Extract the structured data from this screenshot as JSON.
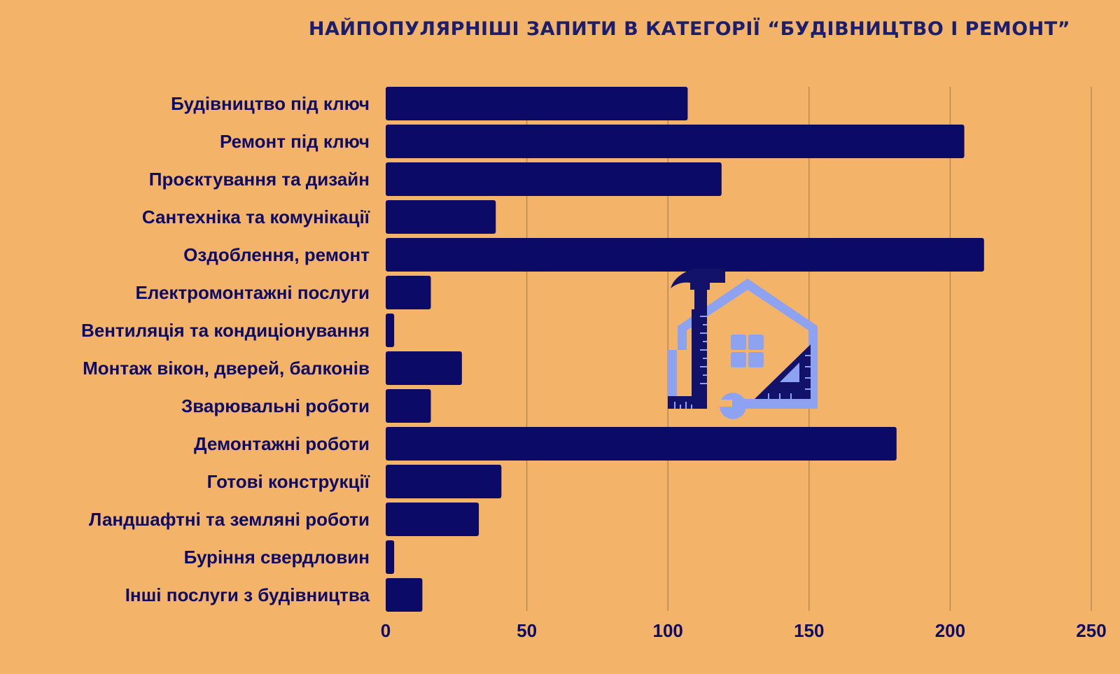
{
  "colors": {
    "background": "#F3B46A",
    "bar": "#0B0A66",
    "text": "#0E0B66",
    "grid": "#B98A55",
    "icon_light": "#8DA2F0",
    "icon_dark": "#12126B"
  },
  "icon": "house-tools-icon",
  "chart_data": {
    "type": "bar",
    "orientation": "horizontal",
    "title": "НАЙПОПУЛЯРНІШІ ЗАПИТИ В КАТЕГОРІЇ “БУДІВНИЦТВО І РЕМОНТ”",
    "xlabel": "",
    "ylabel": "",
    "xlim": [
      0,
      250
    ],
    "xticks": [
      0,
      50,
      100,
      150,
      200,
      250
    ],
    "grid": "vertical",
    "categories": [
      "Будівництво під ключ",
      "Ремонт під ключ",
      "Проєктування та дизайн",
      "Сантехніка та комунікації",
      "Оздоблення, ремонт",
      "Електромонтажні послуги",
      "Вентиляція та кондиціонування",
      "Монтаж вікон, дверей, балконів",
      "Зварювальні роботи",
      "Демонтажні роботи",
      "Готові конструкції",
      "Ландшафтні та земляні роботи",
      "Буріння свердловин",
      "Інші послуги з будівництва"
    ],
    "values": [
      107,
      205,
      119,
      39,
      212,
      16,
      3,
      27,
      16,
      181,
      41,
      33,
      3,
      13
    ]
  }
}
